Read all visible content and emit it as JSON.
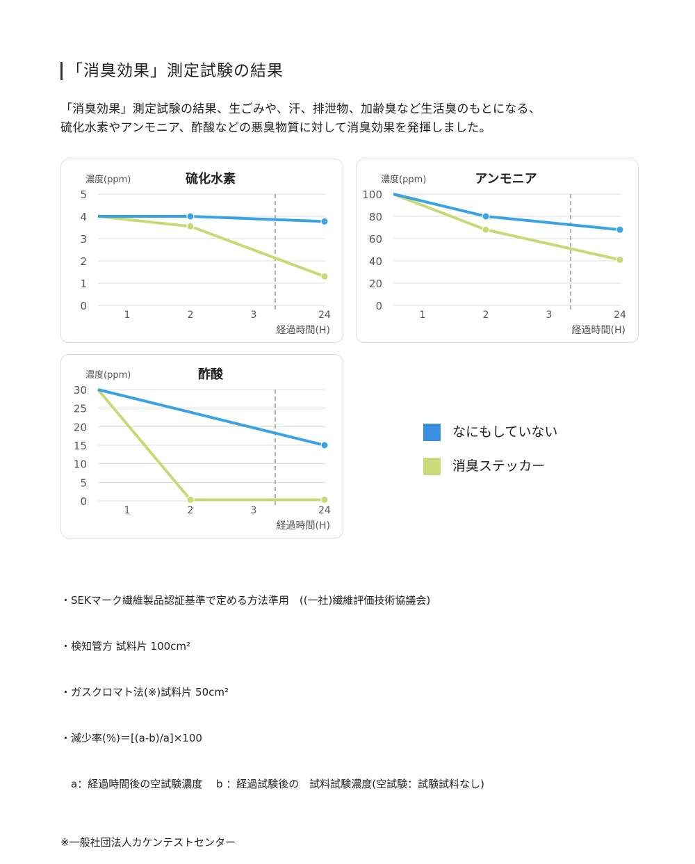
{
  "heading": "「消臭効果」測定試験の結果",
  "intro": [
    "「消臭効果」測定試験の結果、生ごみや、汗、排泄物、加齢臭など生活臭のもとになる、",
    "硫化水素やアンモニア、酢酸などの悪臭物質に対して消臭効果を発揮しました。"
  ],
  "legend": [
    {
      "label": "なにもしていない",
      "color": "#3a8ee0"
    },
    {
      "label": "消臭ステッカー",
      "color": "#c9dc7a"
    }
  ],
  "chart_data": [
    {
      "type": "line",
      "title": "硫化水素",
      "ylabel": "濃度(ppm)",
      "xlabel": "経過時間(H)",
      "categories": [
        "1",
        "2",
        "3",
        "24"
      ],
      "yticks": [
        0,
        1,
        2,
        3,
        4,
        5
      ],
      "ylim": [
        0,
        5
      ],
      "axis_break_between": [
        "3",
        "24"
      ],
      "grid": true,
      "series": [
        {
          "name": "なにもしていない",
          "color": "#3ba3e3",
          "points": [
            {
              "x": "0",
              "y": 4
            },
            {
              "x": "2",
              "y": 4
            },
            {
              "x": "24",
              "y": 3.77
            }
          ]
        },
        {
          "name": "消臭ステッカー",
          "color": "#c6db76",
          "points": [
            {
              "x": "0",
              "y": 4
            },
            {
              "x": "2",
              "y": 3.55
            },
            {
              "x": "24",
              "y": 1.3
            }
          ]
        }
      ]
    },
    {
      "type": "line",
      "title": "アンモニア",
      "ylabel": "濃度(ppm)",
      "xlabel": "経過時間(H)",
      "categories": [
        "1",
        "2",
        "3",
        "24"
      ],
      "yticks": [
        0,
        20,
        40,
        60,
        80,
        100
      ],
      "ylim": [
        0,
        100
      ],
      "axis_break_between": [
        "3",
        "24"
      ],
      "grid": true,
      "series": [
        {
          "name": "なにもしていない",
          "color": "#3ba3e3",
          "points": [
            {
              "x": "0",
              "y": 100
            },
            {
              "x": "2",
              "y": 80
            },
            {
              "x": "24",
              "y": 68
            }
          ]
        },
        {
          "name": "消臭ステッカー",
          "color": "#c6db76",
          "points": [
            {
              "x": "0",
              "y": 100
            },
            {
              "x": "2",
              "y": 68
            },
            {
              "x": "24",
              "y": 41
            }
          ]
        }
      ]
    },
    {
      "type": "line",
      "title": "酢酸",
      "ylabel": "濃度(ppm)",
      "xlabel": "経過時間(H)",
      "categories": [
        "1",
        "2",
        "3",
        "24"
      ],
      "yticks": [
        0,
        5,
        10,
        15,
        20,
        25,
        30
      ],
      "ylim": [
        0,
        30
      ],
      "axis_break_between": [
        "3",
        "24"
      ],
      "grid": true,
      "series": [
        {
          "name": "なにもしていない",
          "color": "#3ba3e3",
          "points": [
            {
              "x": "0",
              "y": 30
            },
            {
              "x": "24",
              "y": 15
            }
          ]
        },
        {
          "name": "消臭ステッカー",
          "color": "#c6db76",
          "points": [
            {
              "x": "0",
              "y": 30
            },
            {
              "x": "2",
              "y": 0.3
            },
            {
              "x": "24",
              "y": 0.3
            }
          ]
        }
      ]
    }
  ],
  "notes": [
    "・SEKマーク繊維製品認証基準で定める方法準用　((一社)繊維評価技術協議会)",
    "・検知管方 試料片 100cm²",
    "・ガスクロマト法(※)試料片 50cm²",
    "・減少率(%)＝[(a-b)/a]×100",
    "　a：経過時間後の空試験濃度　 b ：経過試験後の　試料試験濃度(空試験：試験試料なし)"
  ],
  "source": "※一般社団法人カケンテストセンター"
}
